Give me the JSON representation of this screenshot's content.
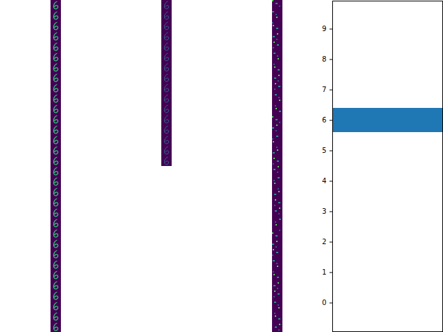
{
  "chart_data": {
    "type": "bar",
    "orientation": "horizontal",
    "categories": [
      "0",
      "1",
      "2",
      "3",
      "4",
      "5",
      "6",
      "7",
      "8",
      "9"
    ],
    "values": [
      0,
      0,
      0,
      0,
      0,
      0,
      1,
      0,
      0,
      0
    ],
    "color": "#1f77b4",
    "xlim": [
      0,
      1
    ],
    "tick_labels": "y"
  }
}
